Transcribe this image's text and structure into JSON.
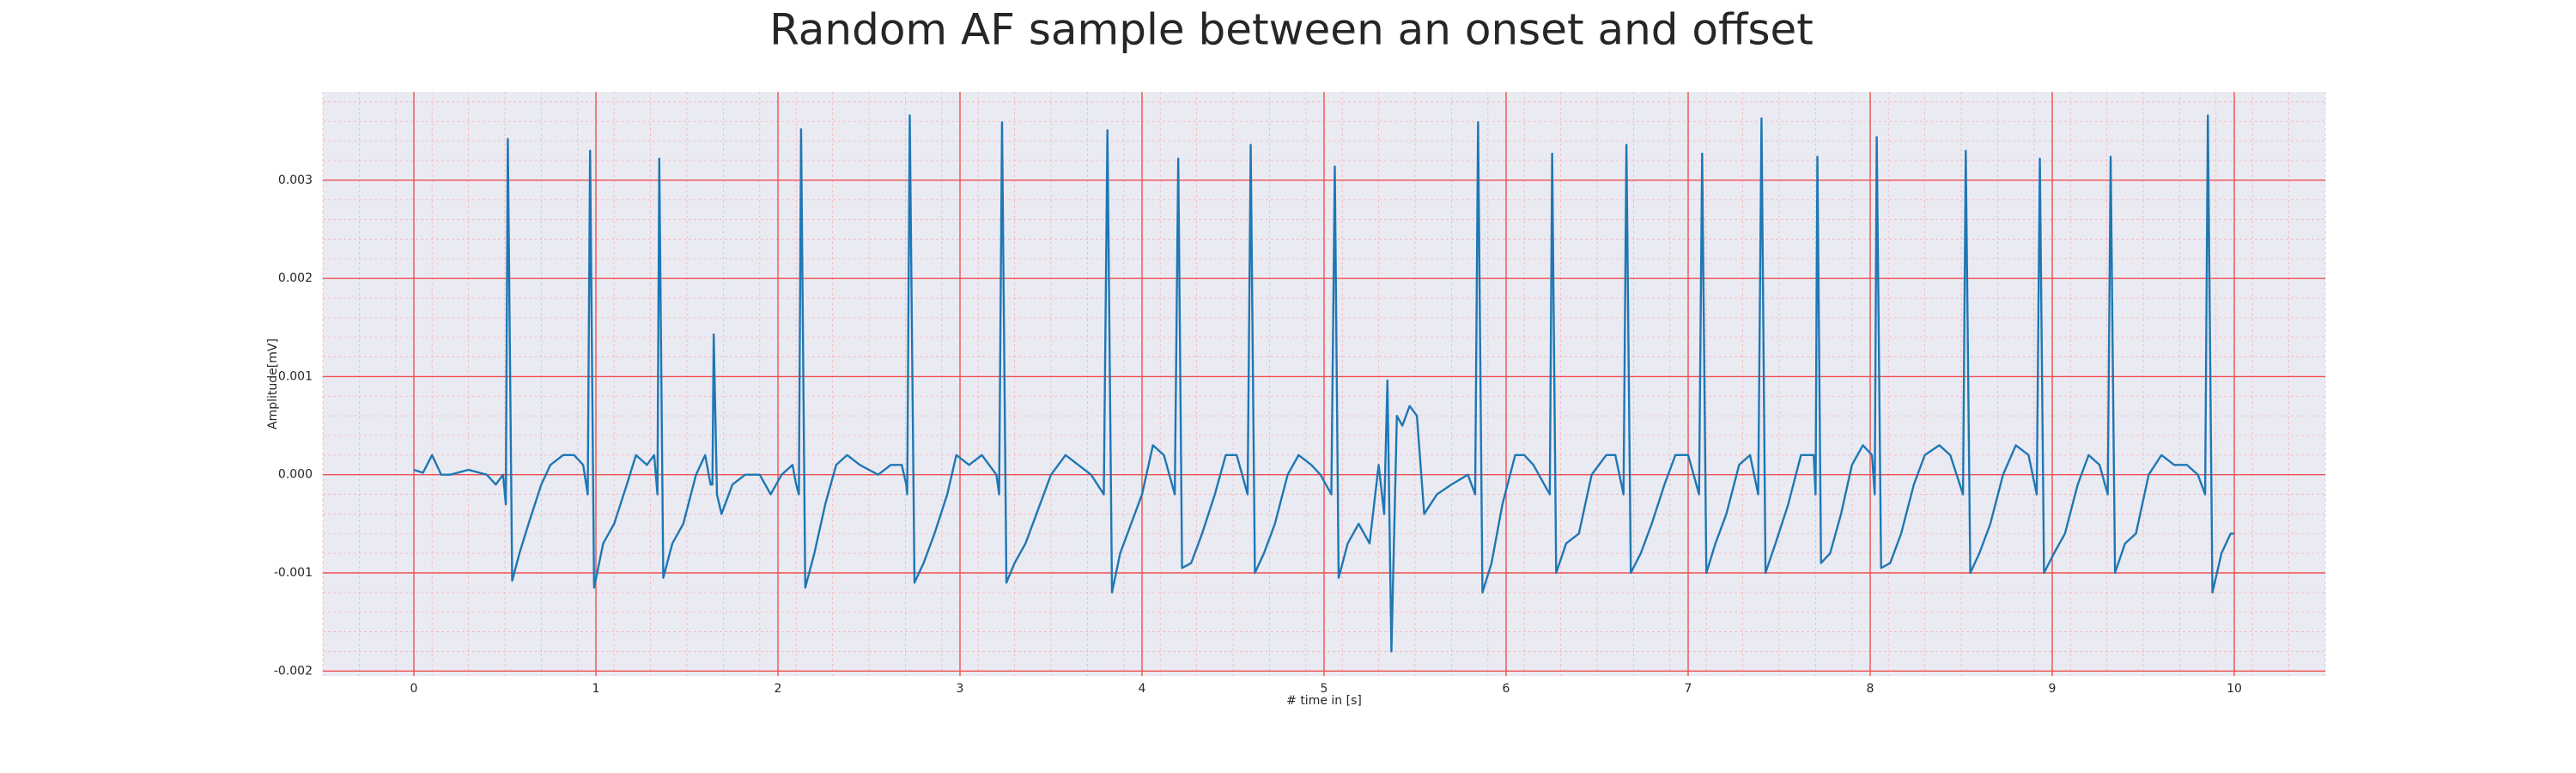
{
  "chart_data": {
    "type": "line",
    "title": "Random AF sample between an onset and offset",
    "xlabel": "# time in [s]",
    "ylabel": "Amplitude[mV]",
    "color": "#1f77b4",
    "xlim": [
      -0.5,
      10.5
    ],
    "ylim": [
      -0.00205,
      0.0039
    ],
    "xticks": [
      0,
      1,
      2,
      3,
      4,
      5,
      6,
      7,
      8,
      9,
      10
    ],
    "yticks": [
      -0.002,
      -0.001,
      {
        "value": 0,
        "label": "0.000"
      },
      0.001,
      0.002,
      0.003
    ],
    "grid": true,
    "minor_grid": true,
    "x": [
      0.0,
      0.05,
      0.1,
      0.15,
      0.2,
      0.3,
      0.4,
      0.45,
      0.49,
      0.505,
      0.516,
      0.54,
      0.58,
      0.63,
      0.7,
      0.75,
      0.82,
      0.88,
      0.93,
      0.955,
      0.968,
      0.99,
      1.04,
      1.1,
      1.17,
      1.22,
      1.28,
      1.32,
      1.338,
      1.348,
      1.37,
      1.42,
      1.48,
      1.55,
      1.6,
      1.63,
      1.64,
      1.647,
      1.665,
      1.69,
      1.75,
      1.82,
      1.9,
      1.96,
      2.02,
      2.08,
      2.1,
      2.115,
      2.127,
      2.15,
      2.2,
      2.26,
      2.32,
      2.38,
      2.45,
      2.55,
      2.62,
      2.68,
      2.705,
      2.71,
      2.724,
      2.75,
      2.8,
      2.86,
      2.93,
      2.98,
      3.05,
      3.12,
      3.2,
      3.215,
      3.231,
      3.255,
      3.3,
      3.36,
      3.42,
      3.5,
      3.58,
      3.65,
      3.72,
      3.79,
      3.81,
      3.835,
      3.88,
      3.94,
      4.0,
      4.06,
      4.12,
      4.18,
      4.199,
      4.22,
      4.27,
      4.33,
      4.4,
      4.46,
      4.52,
      4.58,
      4.597,
      4.62,
      4.67,
      4.73,
      4.8,
      4.86,
      4.93,
      4.98,
      5.04,
      5.059,
      5.08,
      5.13,
      5.19,
      5.25,
      5.3,
      5.33,
      5.348,
      5.37,
      5.4,
      5.43,
      5.47,
      5.51,
      5.55,
      5.62,
      5.7,
      5.79,
      5.83,
      5.846,
      5.87,
      5.92,
      5.98,
      6.05,
      6.1,
      6.15,
      6.24,
      6.253,
      6.275,
      6.33,
      6.4,
      6.47,
      6.55,
      6.6,
      6.645,
      6.661,
      6.685,
      6.74,
      6.8,
      6.87,
      6.93,
      7.0,
      7.06,
      7.077,
      7.1,
      7.15,
      7.21,
      7.28,
      7.34,
      7.385,
      7.403,
      7.425,
      7.48,
      7.55,
      7.62,
      7.69,
      7.7,
      7.71,
      7.73,
      7.78,
      7.84,
      7.9,
      7.96,
      8.01,
      8.025,
      8.036,
      8.06,
      8.11,
      8.17,
      8.24,
      8.3,
      8.38,
      8.44,
      8.51,
      8.525,
      8.55,
      8.6,
      8.66,
      8.73,
      8.8,
      8.87,
      8.915,
      8.932,
      8.955,
      9.01,
      9.07,
      9.14,
      9.2,
      9.26,
      9.305,
      9.321,
      9.345,
      9.4,
      9.46,
      9.53,
      9.6,
      9.67,
      9.74,
      9.8,
      9.84,
      9.855,
      9.88,
      9.93,
      9.98,
      10.0
    ],
    "values": [
      5e-05,
      2e-05,
      0.0002,
      0.0,
      0.0,
      5e-05,
      0.0,
      -0.0001,
      0.0,
      -0.0003,
      0.00342,
      -0.00108,
      -0.0008,
      -0.0005,
      -0.0001,
      0.0001,
      0.0002,
      0.0002,
      0.0001,
      -0.0002,
      0.0033,
      -0.00115,
      -0.0007,
      -0.0005,
      -0.0001,
      0.0002,
      0.0001,
      0.0002,
      -0.0002,
      0.00322,
      -0.00105,
      -0.0007,
      -0.0005,
      0.0,
      0.0002,
      -0.0001,
      -0.0001,
      0.00143,
      -0.0002,
      -0.0004,
      -0.0001,
      0.0,
      0.0,
      -0.0002,
      0.0,
      0.0001,
      -0.0001,
      -0.0002,
      0.00352,
      -0.00115,
      -0.0008,
      -0.0003,
      0.0001,
      0.0002,
      0.0001,
      0.0,
      0.0001,
      0.0001,
      -0.0001,
      -0.0002,
      0.00366,
      -0.0011,
      -0.0009,
      -0.0006,
      -0.0002,
      0.0002,
      0.0001,
      0.0002,
      0.0,
      -0.0002,
      0.00359,
      -0.0011,
      -0.0009,
      -0.0007,
      -0.0004,
      0.0,
      0.0002,
      0.0001,
      0.0,
      -0.0002,
      0.00351,
      -0.0012,
      -0.0008,
      -0.0005,
      -0.0002,
      0.0003,
      0.0002,
      -0.0002,
      0.00322,
      -0.00095,
      -0.0009,
      -0.0006,
      -0.0002,
      0.0002,
      0.0002,
      -0.0002,
      0.00336,
      -0.001,
      -0.0008,
      -0.0005,
      0.0,
      0.0002,
      0.0001,
      0.0,
      -0.0002,
      0.00314,
      -0.00105,
      -0.0007,
      -0.0005,
      -0.0007,
      0.0001,
      -0.0004,
      0.00096,
      -0.0018,
      0.0006,
      0.0005,
      0.0007,
      0.0006,
      -0.0004,
      -0.0002,
      -0.0001,
      0.0,
      -0.0002,
      0.00359,
      -0.0012,
      -0.0009,
      -0.0003,
      0.0002,
      0.0002,
      0.0001,
      -0.0002,
      0.00327,
      -0.001,
      -0.0007,
      -0.0006,
      0.0,
      0.0002,
      0.0002,
      -0.0002,
      0.00336,
      -0.001,
      -0.0008,
      -0.0005,
      -0.0001,
      0.0002,
      0.0002,
      -0.0002,
      0.00327,
      -0.001,
      -0.0007,
      -0.0004,
      0.0001,
      0.0002,
      -0.0002,
      0.00363,
      -0.001,
      -0.0007,
      -0.0003,
      0.0002,
      0.0002,
      -0.0002,
      0.00324,
      -0.0009,
      -0.0008,
      -0.0004,
      0.0001,
      0.0003,
      0.0002,
      -0.0002,
      0.00344,
      -0.00095,
      -0.0009,
      -0.0006,
      -0.0001,
      0.0002,
      0.0003,
      0.0002,
      -0.0002,
      0.0033,
      -0.001,
      -0.0008,
      -0.0005,
      0.0,
      0.0003,
      0.0002,
      -0.0002,
      0.00322,
      -0.001,
      -0.0008,
      -0.0006,
      -0.0001,
      0.0002,
      0.0001,
      -0.0002,
      0.00324,
      -0.001,
      -0.0007,
      -0.0006,
      0.0,
      0.0002,
      0.0001,
      0.0001,
      0.0,
      -0.0002,
      0.00366,
      -0.0012,
      -0.0008,
      -0.0006,
      -0.0006
    ]
  }
}
